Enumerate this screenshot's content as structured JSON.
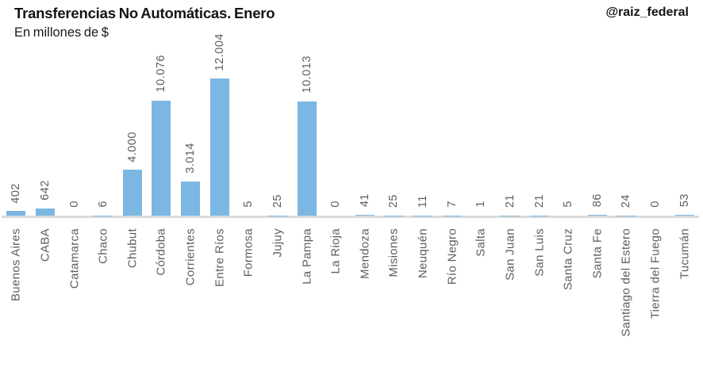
{
  "header": {
    "title": "Transferencias No Automáticas. Enero",
    "subtitle": "En millones de $",
    "watermark": "@raiz_federal"
  },
  "colors": {
    "bar": "#7cb7e3",
    "axis_line": "#dadada",
    "tick_label": "#5d5e60",
    "title_text": "#141414"
  },
  "chart_data": {
    "type": "bar",
    "title": "Transferencias No Automáticas. Enero",
    "subtitle": "En millones de $",
    "xlabel": "",
    "ylabel": "En millones de $",
    "ylim": [
      0,
      12004
    ],
    "grid": false,
    "legend": null,
    "tick_label_rotation": 90,
    "bar_color": "#7cb7e3",
    "categories": [
      "Buenos Aires",
      "CABA",
      "Catamarca",
      "Chaco",
      "Chubut",
      "Córdoba",
      "Corrientes",
      "Entre Ríos",
      "Formosa",
      "Jujuy",
      "La Pampa",
      "La Rioja",
      "Mendoza",
      "Misiones",
      "Neuquén",
      "Río Negro",
      "Salta",
      "San Juan",
      "San Luis",
      "Santa Cruz",
      "Santa Fe",
      "Santiago del Estero",
      "Tierra del Fuego",
      "Tucumán"
    ],
    "values": [
      402,
      642,
      0,
      6,
      4000,
      10076,
      3014,
      12004,
      5,
      25,
      10013,
      0,
      41,
      25,
      11,
      7,
      1,
      21,
      21,
      5,
      86,
      24,
      0,
      53
    ],
    "value_labels": [
      "402",
      "642",
      "0",
      "6",
      "4.000",
      "10.076",
      "3.014",
      "12.004",
      "5",
      "25",
      "10.013",
      "0",
      "41",
      "25",
      "11",
      "7",
      "1",
      "21",
      "21",
      "5",
      "86",
      "24",
      "0",
      "53"
    ]
  }
}
